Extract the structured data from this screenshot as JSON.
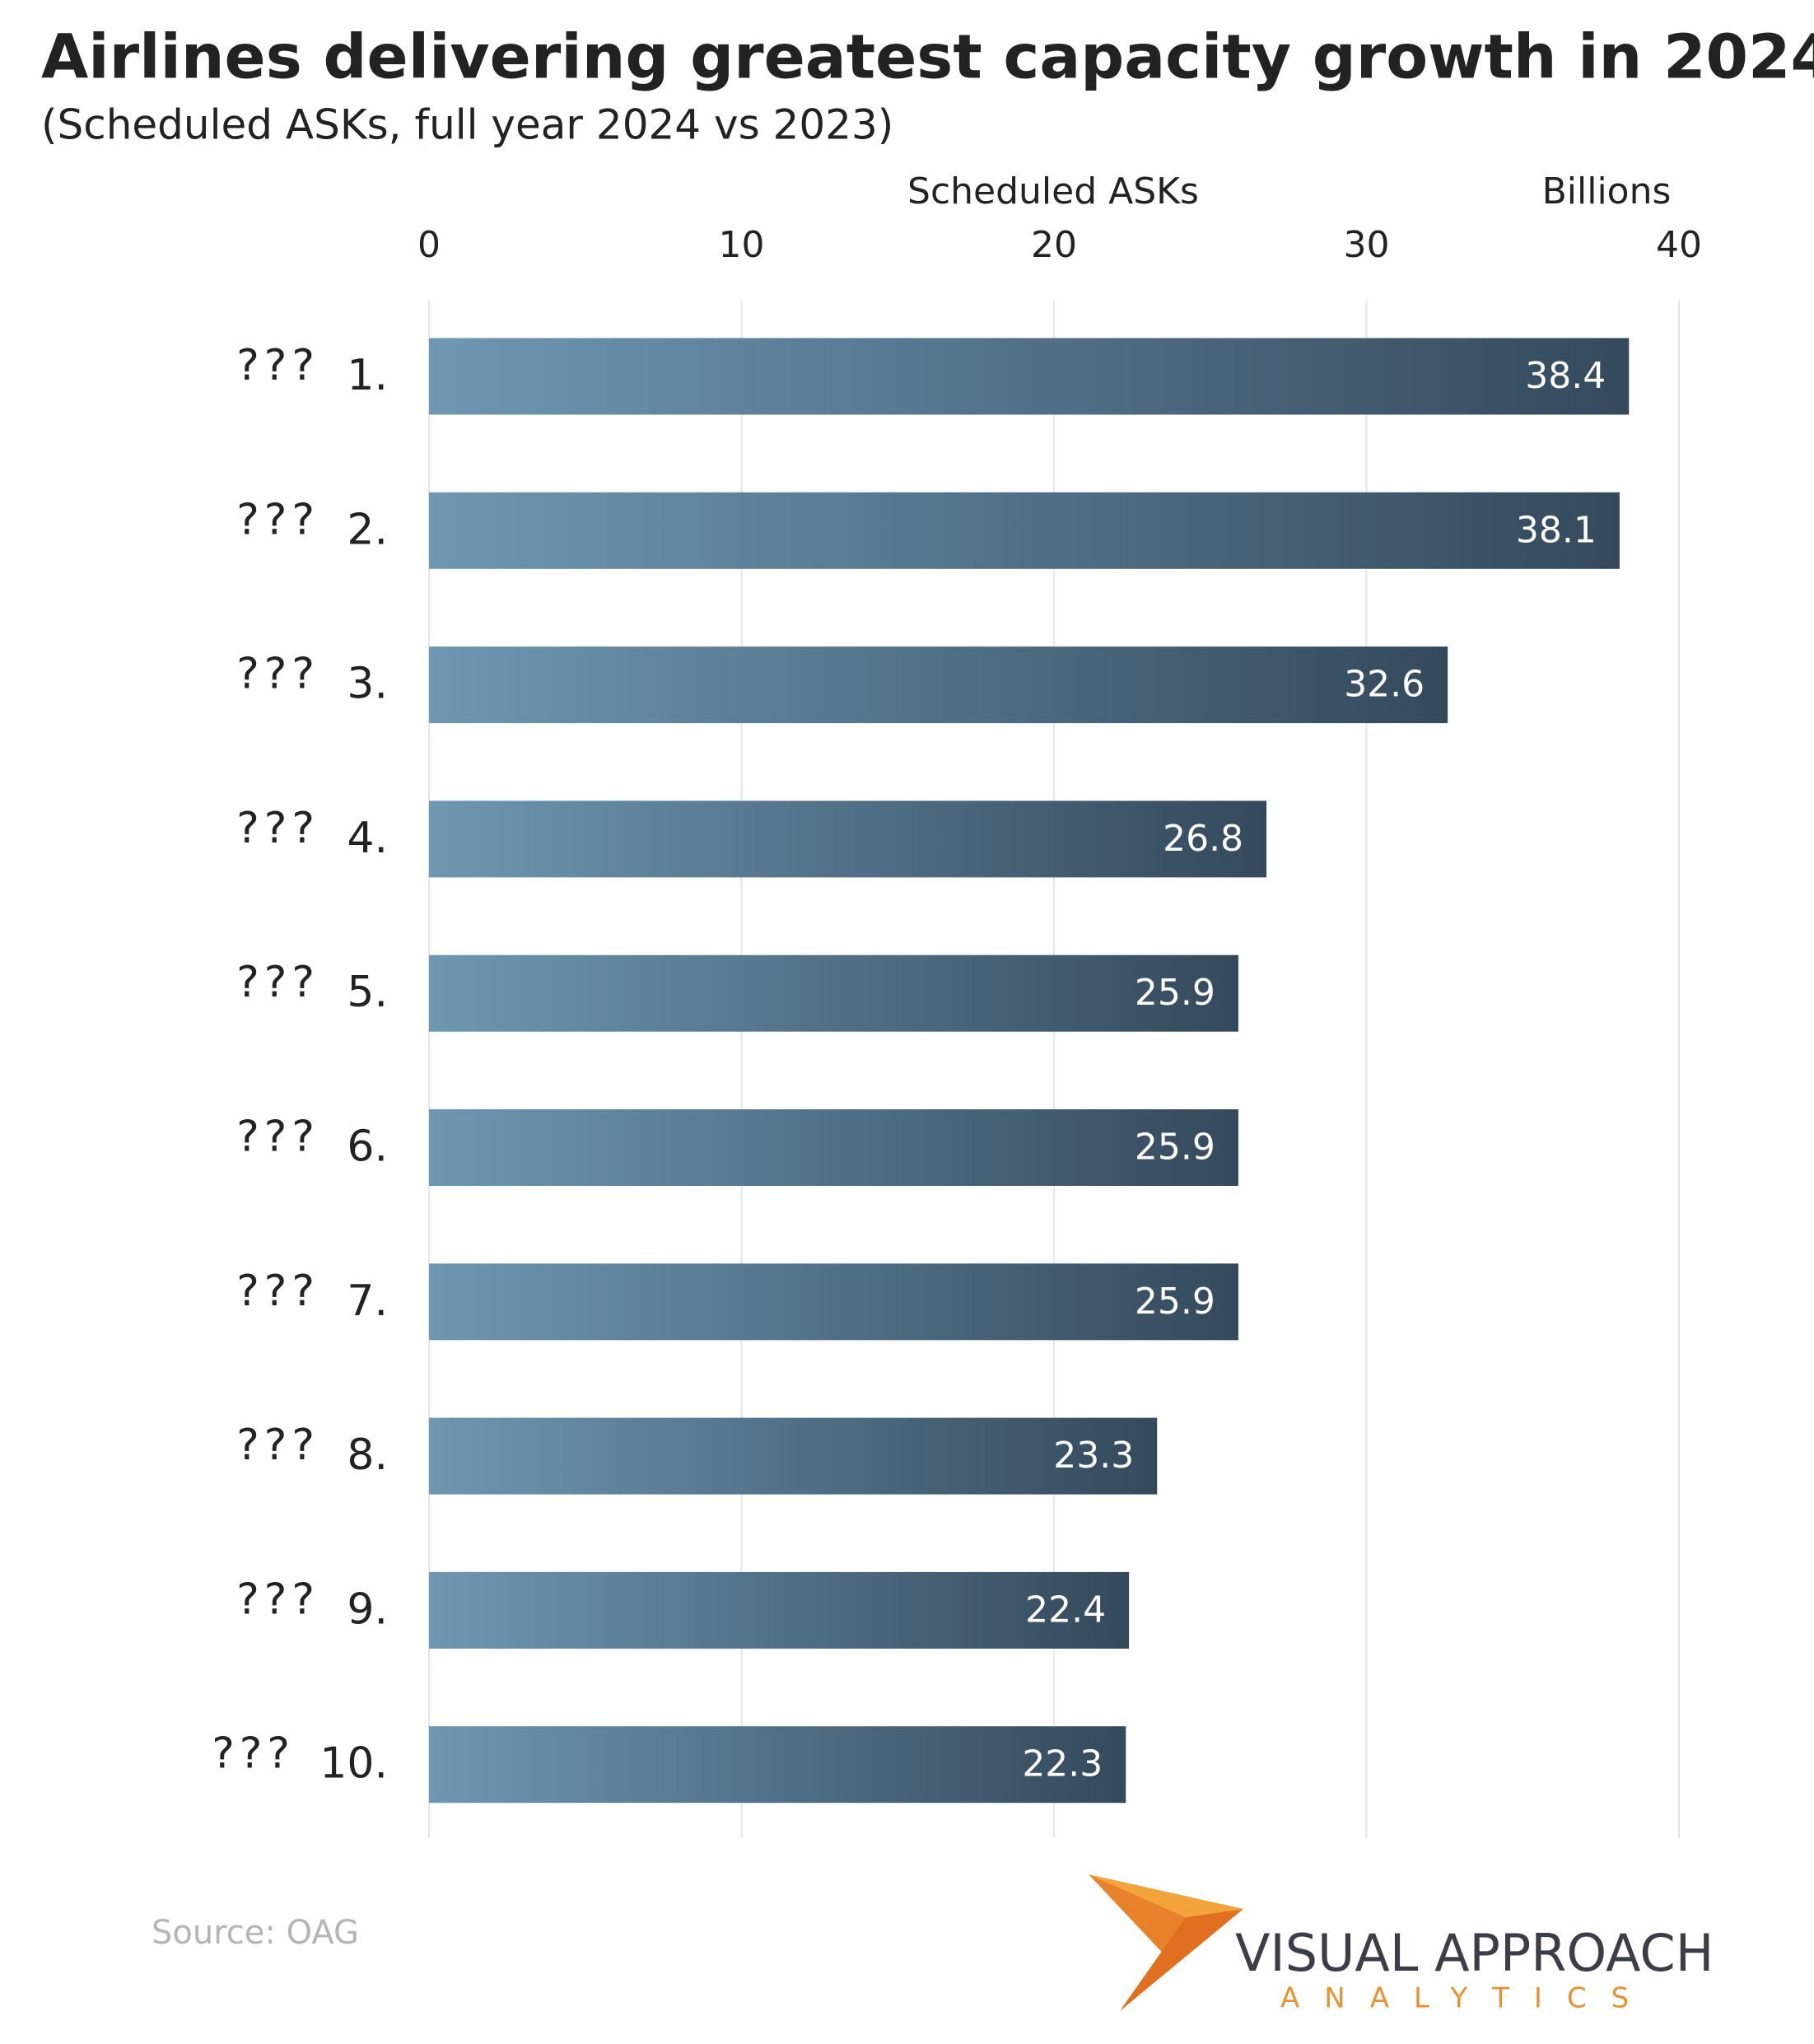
{
  "chart_data": {
    "type": "bar",
    "orientation": "horizontal",
    "title": "Airlines delivering greatest capacity growth in 2024",
    "subtitle": "(Scheduled ASKs, full year 2024 vs 2023)",
    "x_label": "Scheduled ASKs",
    "x_unit": "Billions",
    "airlines": [
      "???",
      "???",
      "???",
      "???",
      "???",
      "???",
      "???",
      "???",
      "???",
      "???"
    ],
    "categories": [
      "1.",
      "2.",
      "3.",
      "4.",
      "5.",
      "6.",
      "7.",
      "8.",
      "9.",
      "10."
    ],
    "values": [
      38.4,
      38.1,
      32.6,
      26.8,
      25.9,
      25.9,
      25.9,
      23.3,
      22.4,
      22.3
    ],
    "color_start": "#6e97b2",
    "color_end": "#34495c",
    "xlim": [
      0,
      40
    ],
    "xticks": [
      0,
      10,
      20,
      30,
      40
    ],
    "grid": true,
    "source": "Source: OAG"
  },
  "logo": {
    "name": "VISUAL APPROACH",
    "tagline": "ANALYTICS"
  }
}
